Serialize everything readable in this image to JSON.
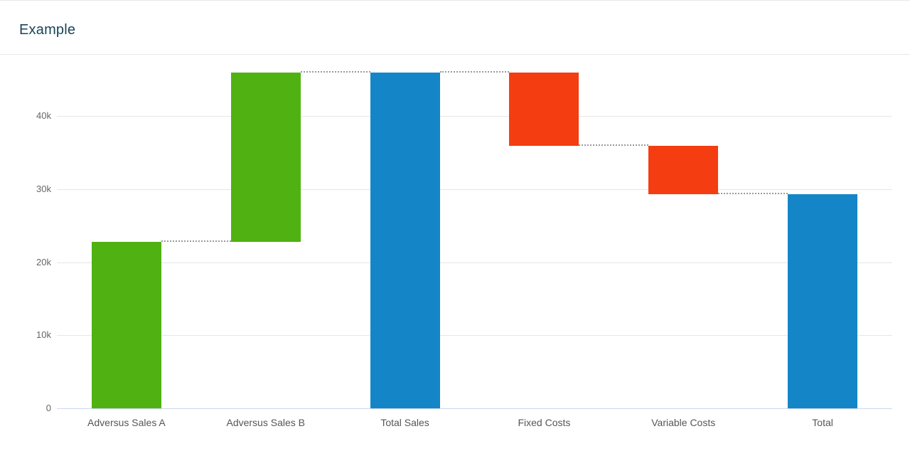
{
  "header": {
    "title": "Example",
    "title_color": "#1a4458"
  },
  "chart_data": {
    "type": "waterfall",
    "title": "Example",
    "categories": [
      "Adversus Sales A",
      "Adversus Sales B",
      "Total Sales",
      "Fixed Costs",
      "Variable Costs",
      "Total"
    ],
    "values": [
      22800,
      23100,
      45900,
      -10000,
      -6600,
      29300
    ],
    "bar_types": [
      "positive",
      "positive",
      "total",
      "negative",
      "negative",
      "total"
    ],
    "xlabel": "",
    "ylabel": "",
    "yticks": [
      0,
      10000,
      20000,
      30000,
      40000
    ],
    "ytick_labels": [
      "0",
      "10k",
      "20k",
      "30k",
      "40k"
    ],
    "ylim": [
      0,
      46600
    ],
    "grid": true,
    "legend": "none",
    "connector_style": "dotted",
    "colors": {
      "positive": "#4fb212",
      "negative": "#f43d10",
      "total": "#1486c7",
      "gridline": "#e6e6e6",
      "axis_line": "#ccd6eb",
      "connector": "#9a9a9a"
    }
  }
}
